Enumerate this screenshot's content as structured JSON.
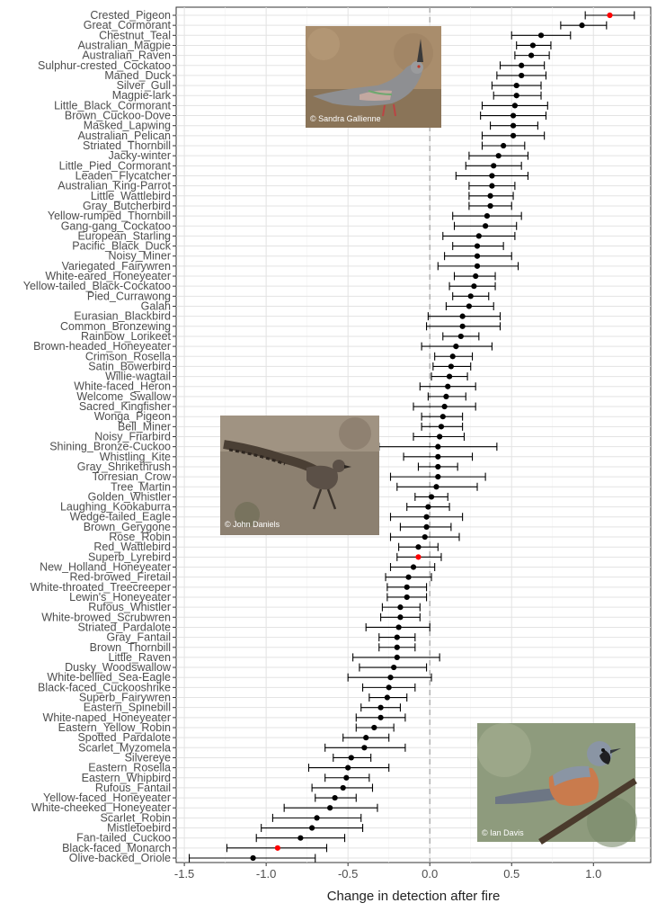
{
  "chart_data": {
    "type": "forest",
    "xlabel": "Change in detection after fire",
    "xlim": [
      -1.55,
      1.35
    ],
    "xticks": [
      -1.5,
      -1.0,
      -0.5,
      0.0,
      0.5,
      1.0
    ],
    "tick_labels": [
      "-1.5",
      "-1.0",
      "-0.5",
      "0.0",
      "0.5",
      "1.0"
    ],
    "reference_line_x": 0,
    "point_color": "#000000",
    "highlight_color": "#ff0000",
    "grid": true,
    "species": [
      {
        "name": "Crested_Pigeon",
        "estimate": 1.1,
        "lower": 0.95,
        "upper": 1.25,
        "highlight": true
      },
      {
        "name": "Great_Cormorant",
        "estimate": 0.93,
        "lower": 0.8,
        "upper": 1.08
      },
      {
        "name": "Chestnut_Teal",
        "estimate": 0.68,
        "lower": 0.5,
        "upper": 0.86
      },
      {
        "name": "Australian_Magpie",
        "estimate": 0.63,
        "lower": 0.53,
        "upper": 0.74
      },
      {
        "name": "Australian_Raven",
        "estimate": 0.62,
        "lower": 0.52,
        "upper": 0.73
      },
      {
        "name": "Sulphur-crested_Cockatoo",
        "estimate": 0.56,
        "lower": 0.43,
        "upper": 0.7
      },
      {
        "name": "Maned_Duck",
        "estimate": 0.56,
        "lower": 0.41,
        "upper": 0.71
      },
      {
        "name": "Silver_Gull",
        "estimate": 0.53,
        "lower": 0.38,
        "upper": 0.68
      },
      {
        "name": "Magpie-lark",
        "estimate": 0.53,
        "lower": 0.39,
        "upper": 0.68
      },
      {
        "name": "Little_Black_Cormorant",
        "estimate": 0.52,
        "lower": 0.32,
        "upper": 0.72
      },
      {
        "name": "Brown_Cuckoo-Dove",
        "estimate": 0.51,
        "lower": 0.31,
        "upper": 0.71
      },
      {
        "name": "Masked_Lapwing",
        "estimate": 0.51,
        "lower": 0.37,
        "upper": 0.66
      },
      {
        "name": "Australian_Pelican",
        "estimate": 0.51,
        "lower": 0.32,
        "upper": 0.7
      },
      {
        "name": "Striated_Thornbill",
        "estimate": 0.45,
        "lower": 0.32,
        "upper": 0.58
      },
      {
        "name": "Jacky-winter",
        "estimate": 0.42,
        "lower": 0.24,
        "upper": 0.6
      },
      {
        "name": "Little_Pied_Cormorant",
        "estimate": 0.39,
        "lower": 0.22,
        "upper": 0.56
      },
      {
        "name": "Leaden_Flycatcher",
        "estimate": 0.38,
        "lower": 0.16,
        "upper": 0.6
      },
      {
        "name": "Australian_King-Parrot",
        "estimate": 0.38,
        "lower": 0.24,
        "upper": 0.52
      },
      {
        "name": "Little_Wattlebird",
        "estimate": 0.37,
        "lower": 0.24,
        "upper": 0.51
      },
      {
        "name": "Gray_Butcherbird",
        "estimate": 0.37,
        "lower": 0.24,
        "upper": 0.5
      },
      {
        "name": "Yellow-rumped_Thornbill",
        "estimate": 0.35,
        "lower": 0.14,
        "upper": 0.56
      },
      {
        "name": "Gang-gang_Cockatoo",
        "estimate": 0.34,
        "lower": 0.15,
        "upper": 0.53
      },
      {
        "name": "European_Starling",
        "estimate": 0.3,
        "lower": 0.08,
        "upper": 0.52
      },
      {
        "name": "Pacific_Black_Duck",
        "estimate": 0.29,
        "lower": 0.14,
        "upper": 0.45
      },
      {
        "name": "Noisy_Miner",
        "estimate": 0.29,
        "lower": 0.09,
        "upper": 0.5
      },
      {
        "name": "Variegated_Fairywren",
        "estimate": 0.29,
        "lower": 0.05,
        "upper": 0.54
      },
      {
        "name": "White-eared_Honeyeater",
        "estimate": 0.28,
        "lower": 0.15,
        "upper": 0.4
      },
      {
        "name": "Yellow-tailed_Black-Cockatoo",
        "estimate": 0.27,
        "lower": 0.12,
        "upper": 0.4
      },
      {
        "name": "Pied_Currawong",
        "estimate": 0.25,
        "lower": 0.14,
        "upper": 0.36
      },
      {
        "name": "Galah",
        "estimate": 0.24,
        "lower": 0.1,
        "upper": 0.39
      },
      {
        "name": "Eurasian_Blackbird",
        "estimate": 0.2,
        "lower": -0.01,
        "upper": 0.43
      },
      {
        "name": "Common_Bronzewing",
        "estimate": 0.2,
        "lower": -0.02,
        "upper": 0.43
      },
      {
        "name": "Rainbow_Lorikeet",
        "estimate": 0.19,
        "lower": 0.08,
        "upper": 0.3
      },
      {
        "name": "Brown-headed_Honeyeater",
        "estimate": 0.16,
        "lower": -0.05,
        "upper": 0.38
      },
      {
        "name": "Crimson_Rosella",
        "estimate": 0.14,
        "lower": 0.03,
        "upper": 0.26
      },
      {
        "name": "Satin_Bowerbird",
        "estimate": 0.13,
        "lower": 0.02,
        "upper": 0.25
      },
      {
        "name": "Willie-wagtail",
        "estimate": 0.12,
        "lower": 0.01,
        "upper": 0.23
      },
      {
        "name": "White-faced_Heron",
        "estimate": 0.11,
        "lower": -0.06,
        "upper": 0.28
      },
      {
        "name": "Welcome_Swallow",
        "estimate": 0.1,
        "lower": -0.01,
        "upper": 0.22
      },
      {
        "name": "Sacred_Kingfisher",
        "estimate": 0.09,
        "lower": -0.1,
        "upper": 0.28
      },
      {
        "name": "Wonga_Pigeon",
        "estimate": 0.08,
        "lower": -0.05,
        "upper": 0.2
      },
      {
        "name": "Bell_Miner",
        "estimate": 0.07,
        "lower": -0.05,
        "upper": 0.2
      },
      {
        "name": "Noisy_Friarbird",
        "estimate": 0.06,
        "lower": -0.1,
        "upper": 0.21
      },
      {
        "name": "Shining_Bronze-Cuckoo",
        "estimate": 0.05,
        "lower": -0.31,
        "upper": 0.41
      },
      {
        "name": "Whistling_Kite",
        "estimate": 0.05,
        "lower": -0.16,
        "upper": 0.26
      },
      {
        "name": "Gray_Shrikethrush",
        "estimate": 0.05,
        "lower": -0.07,
        "upper": 0.17
      },
      {
        "name": "Torresian_Crow",
        "estimate": 0.05,
        "lower": -0.24,
        "upper": 0.34
      },
      {
        "name": "Tree_Martin",
        "estimate": 0.04,
        "lower": -0.2,
        "upper": 0.29
      },
      {
        "name": "Golden_Whistler",
        "estimate": 0.01,
        "lower": -0.09,
        "upper": 0.11
      },
      {
        "name": "Laughing_Kookaburra",
        "estimate": -0.01,
        "lower": -0.14,
        "upper": 0.12
      },
      {
        "name": "Wedge-tailed_Eagle",
        "estimate": -0.02,
        "lower": -0.24,
        "upper": 0.2
      },
      {
        "name": "Brown_Gerygone",
        "estimate": -0.02,
        "lower": -0.18,
        "upper": 0.13
      },
      {
        "name": "Rose_Robin",
        "estimate": -0.03,
        "lower": -0.24,
        "upper": 0.18
      },
      {
        "name": "Red_Wattlebird",
        "estimate": -0.07,
        "lower": -0.19,
        "upper": 0.05
      },
      {
        "name": "Superb_Lyrebird",
        "estimate": -0.07,
        "lower": -0.2,
        "upper": 0.07,
        "highlight": true
      },
      {
        "name": "New_Holland_Honeyeater",
        "estimate": -0.1,
        "lower": -0.24,
        "upper": 0.03
      },
      {
        "name": "Red-browed_Firetail",
        "estimate": -0.13,
        "lower": -0.27,
        "upper": 0.01
      },
      {
        "name": "White-throated_Treecreeper",
        "estimate": -0.14,
        "lower": -0.26,
        "upper": -0.02
      },
      {
        "name": "Lewin's_Honeyeater",
        "estimate": -0.14,
        "lower": -0.26,
        "upper": -0.02
      },
      {
        "name": "Rufous_Whistler",
        "estimate": -0.18,
        "lower": -0.29,
        "upper": -0.06
      },
      {
        "name": "White-browed_Scrubwren",
        "estimate": -0.18,
        "lower": -0.3,
        "upper": -0.06
      },
      {
        "name": "Striated_Pardalote",
        "estimate": -0.19,
        "lower": -0.39,
        "upper": 0.0
      },
      {
        "name": "Gray_Fantail",
        "estimate": -0.2,
        "lower": -0.31,
        "upper": -0.09
      },
      {
        "name": "Brown_Thornbill",
        "estimate": -0.2,
        "lower": -0.31,
        "upper": -0.09
      },
      {
        "name": "Little_Raven",
        "estimate": -0.2,
        "lower": -0.47,
        "upper": 0.06
      },
      {
        "name": "Dusky_Woodswallow",
        "estimate": -0.22,
        "lower": -0.43,
        "upper": -0.02
      },
      {
        "name": "White-bellied_Sea-Eagle",
        "estimate": -0.24,
        "lower": -0.5,
        "upper": 0.01
      },
      {
        "name": "Black-faced_Cuckooshrike",
        "estimate": -0.25,
        "lower": -0.41,
        "upper": -0.09
      },
      {
        "name": "Superb_Fairywren",
        "estimate": -0.26,
        "lower": -0.37,
        "upper": -0.14
      },
      {
        "name": "Eastern_Spinebill",
        "estimate": -0.3,
        "lower": -0.42,
        "upper": -0.18
      },
      {
        "name": "White-naped_Honeyeater",
        "estimate": -0.3,
        "lower": -0.45,
        "upper": -0.15
      },
      {
        "name": "Eastern_Yellow_Robin",
        "estimate": -0.34,
        "lower": -0.45,
        "upper": -0.22
      },
      {
        "name": "Spotted_Pardalote",
        "estimate": -0.39,
        "lower": -0.53,
        "upper": -0.25
      },
      {
        "name": "Scarlet_Myzomela",
        "estimate": -0.4,
        "lower": -0.64,
        "upper": -0.15
      },
      {
        "name": "Silvereye",
        "estimate": -0.48,
        "lower": -0.59,
        "upper": -0.36
      },
      {
        "name": "Eastern_Rosella",
        "estimate": -0.5,
        "lower": -0.74,
        "upper": -0.25
      },
      {
        "name": "Eastern_Whipbird",
        "estimate": -0.51,
        "lower": -0.64,
        "upper": -0.37
      },
      {
        "name": "Rufous_Fantail",
        "estimate": -0.53,
        "lower": -0.72,
        "upper": -0.35
      },
      {
        "name": "Yellow-faced_Honeyeater",
        "estimate": -0.58,
        "lower": -0.7,
        "upper": -0.45
      },
      {
        "name": "White-cheeked_Honeyeater",
        "estimate": -0.61,
        "lower": -0.89,
        "upper": -0.32
      },
      {
        "name": "Scarlet_Robin",
        "estimate": -0.69,
        "lower": -0.96,
        "upper": -0.42
      },
      {
        "name": "Mistletoebird",
        "estimate": -0.72,
        "lower": -1.03,
        "upper": -0.41
      },
      {
        "name": "Fan-tailed_Cuckoo",
        "estimate": -0.79,
        "lower": -1.06,
        "upper": -0.52
      },
      {
        "name": "Black-faced_Monarch",
        "estimate": -0.93,
        "lower": -1.24,
        "upper": -0.63,
        "highlight": true
      },
      {
        "name": "Olive-backed_Oriole",
        "estimate": -1.08,
        "lower": -1.47,
        "upper": -0.7
      }
    ]
  },
  "photos": [
    {
      "credit": "© Sandra Gallienne",
      "subject": "crested-pigeon-photo"
    },
    {
      "credit": "© John Daniels",
      "subject": "superb-lyrebird-photo"
    },
    {
      "credit": "© Ian Davis",
      "subject": "black-faced-monarch-photo"
    }
  ]
}
